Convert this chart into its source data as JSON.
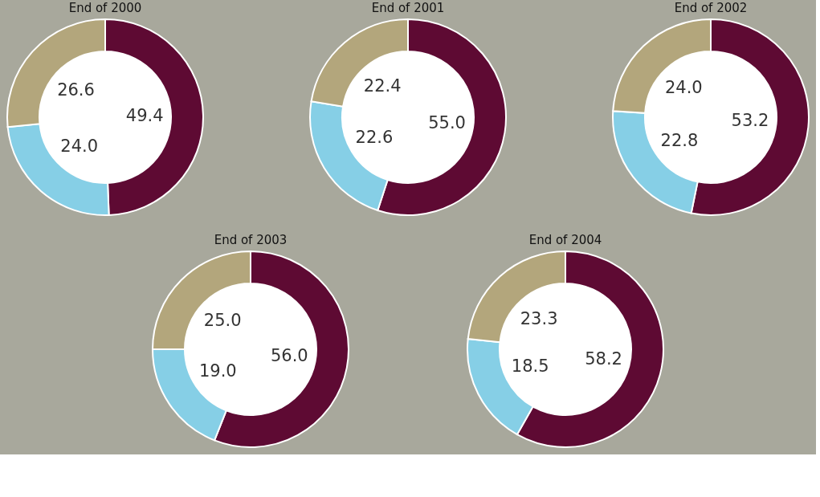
{
  "chart_data": [
    {
      "type": "donut",
      "title": "End of 2000",
      "categories": [
        null,
        null,
        null
      ],
      "values": [
        49.4,
        24.0,
        26.6
      ],
      "value_labels": [
        "49.4",
        "24.0",
        "26.6"
      ],
      "colors": [
        "#5e0a33",
        "#86cfe6",
        "#b3a67c"
      ]
    },
    {
      "type": "donut",
      "title": "End of 2001",
      "categories": [
        null,
        null,
        null
      ],
      "values": [
        55.0,
        22.6,
        22.4
      ],
      "value_labels": [
        "55.0",
        "22.6",
        "22.4"
      ],
      "colors": [
        "#5e0a33",
        "#86cfe6",
        "#b3a67c"
      ]
    },
    {
      "type": "donut",
      "title": "End of 2002",
      "categories": [
        null,
        null,
        null
      ],
      "values": [
        53.2,
        22.8,
        24.0
      ],
      "value_labels": [
        "53.2",
        "22.8",
        "24.0"
      ],
      "colors": [
        "#5e0a33",
        "#86cfe6",
        "#b3a67c"
      ]
    },
    {
      "type": "donut",
      "title": "End of 2003",
      "categories": [
        null,
        null,
        null
      ],
      "values": [
        56.0,
        19.0,
        25.0
      ],
      "value_labels": [
        "56.0",
        "19.0",
        "25.0"
      ],
      "colors": [
        "#5e0a33",
        "#86cfe6",
        "#b3a67c"
      ]
    },
    {
      "type": "donut",
      "title": "End of 2004",
      "categories": [
        null,
        null,
        null
      ],
      "values": [
        58.2,
        18.5,
        23.3
      ],
      "value_labels": [
        "58.2",
        "18.5",
        "23.3"
      ],
      "colors": [
        "#5e0a33",
        "#86cfe6",
        "#b3a67c"
      ]
    }
  ]
}
